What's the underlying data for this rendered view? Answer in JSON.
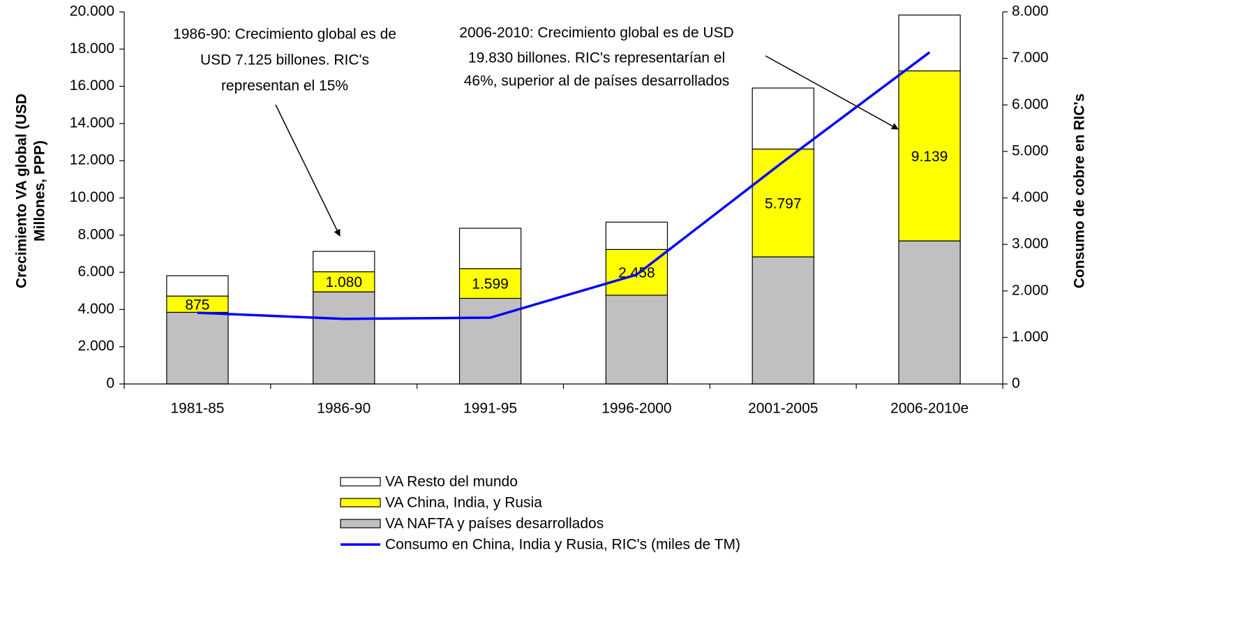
{
  "chart_data": {
    "type": "bar",
    "stacked": true,
    "categories": [
      "1981-85",
      "1986-90",
      "1991-95",
      "1996-2000",
      "2001-2005",
      "2006-2010e"
    ],
    "series": [
      {
        "name": "VA NAFTA y países desarrollados",
        "color": "#c0c0c0",
        "values": [
          3850,
          4950,
          4600,
          4770,
          6830,
          7690
        ]
      },
      {
        "name": "VA China, India, y Rusia",
        "color": "#ffff00",
        "values": [
          875,
          1080,
          1599,
          2458,
          5797,
          9139
        ],
        "value_labels": [
          "875",
          "1.080",
          "1.599",
          "2.458",
          "5.797",
          "9.139"
        ]
      },
      {
        "name": "VA Resto del mundo",
        "color": "#ffffff",
        "values": [
          1095,
          1095,
          2170,
          1470,
          3280,
          3001
        ]
      },
      {
        "name": "Consumo en China, India y Rusia, RIC's (miles de TM)",
        "color": "#0000ff",
        "type": "line",
        "axis": "y2",
        "values": [
          1530,
          1400,
          1425,
          2350,
          4775,
          7130
        ]
      }
    ],
    "ylabel": [
      "Crecimiento VA global (USD",
      "Millones, PPP)"
    ],
    "y2label": "Consumo de cobre en RIC's",
    "ylim": [
      0,
      20000
    ],
    "yticks": [
      0,
      {
        "value": 2000,
        "label": "2.000"
      },
      {
        "value": 4000,
        "label": "4.000"
      },
      {
        "value": 6000,
        "label": "6.000"
      },
      {
        "value": 8000,
        "label": "8.000"
      },
      {
        "value": 10000,
        "label": "10.000"
      },
      {
        "value": 12000,
        "label": "12.000"
      },
      {
        "value": 14000,
        "label": "14.000"
      },
      {
        "value": 16000,
        "label": "16.000"
      },
      {
        "value": 18000,
        "label": "18.000"
      },
      {
        "value": 20000,
        "label": "20.000"
      }
    ],
    "y2lim": [
      0,
      8000
    ],
    "y2ticks": [
      0,
      {
        "value": 1000,
        "label": "1.000"
      },
      {
        "value": 2000,
        "label": "2.000"
      },
      {
        "value": 3000,
        "label": "3.000"
      },
      {
        "value": 4000,
        "label": "4.000"
      },
      {
        "value": 5000,
        "label": "5.000"
      },
      {
        "value": 6000,
        "label": "6.000"
      },
      {
        "value": 7000,
        "label": "7.000"
      },
      {
        "value": 8000,
        "label": "8.000"
      }
    ],
    "annotations": [
      {
        "lines": [
          "1986-90: Crecimiento global es de",
          "USD 7.125 billones. RIC's",
          "representan el 15%"
        ]
      },
      {
        "lines": [
          "2006-2010: Crecimiento global es de USD",
          "19.830 billones. RIC's representarían el",
          "46%, superior al de países desarrollados"
        ]
      }
    ],
    "legend": "bottom"
  }
}
